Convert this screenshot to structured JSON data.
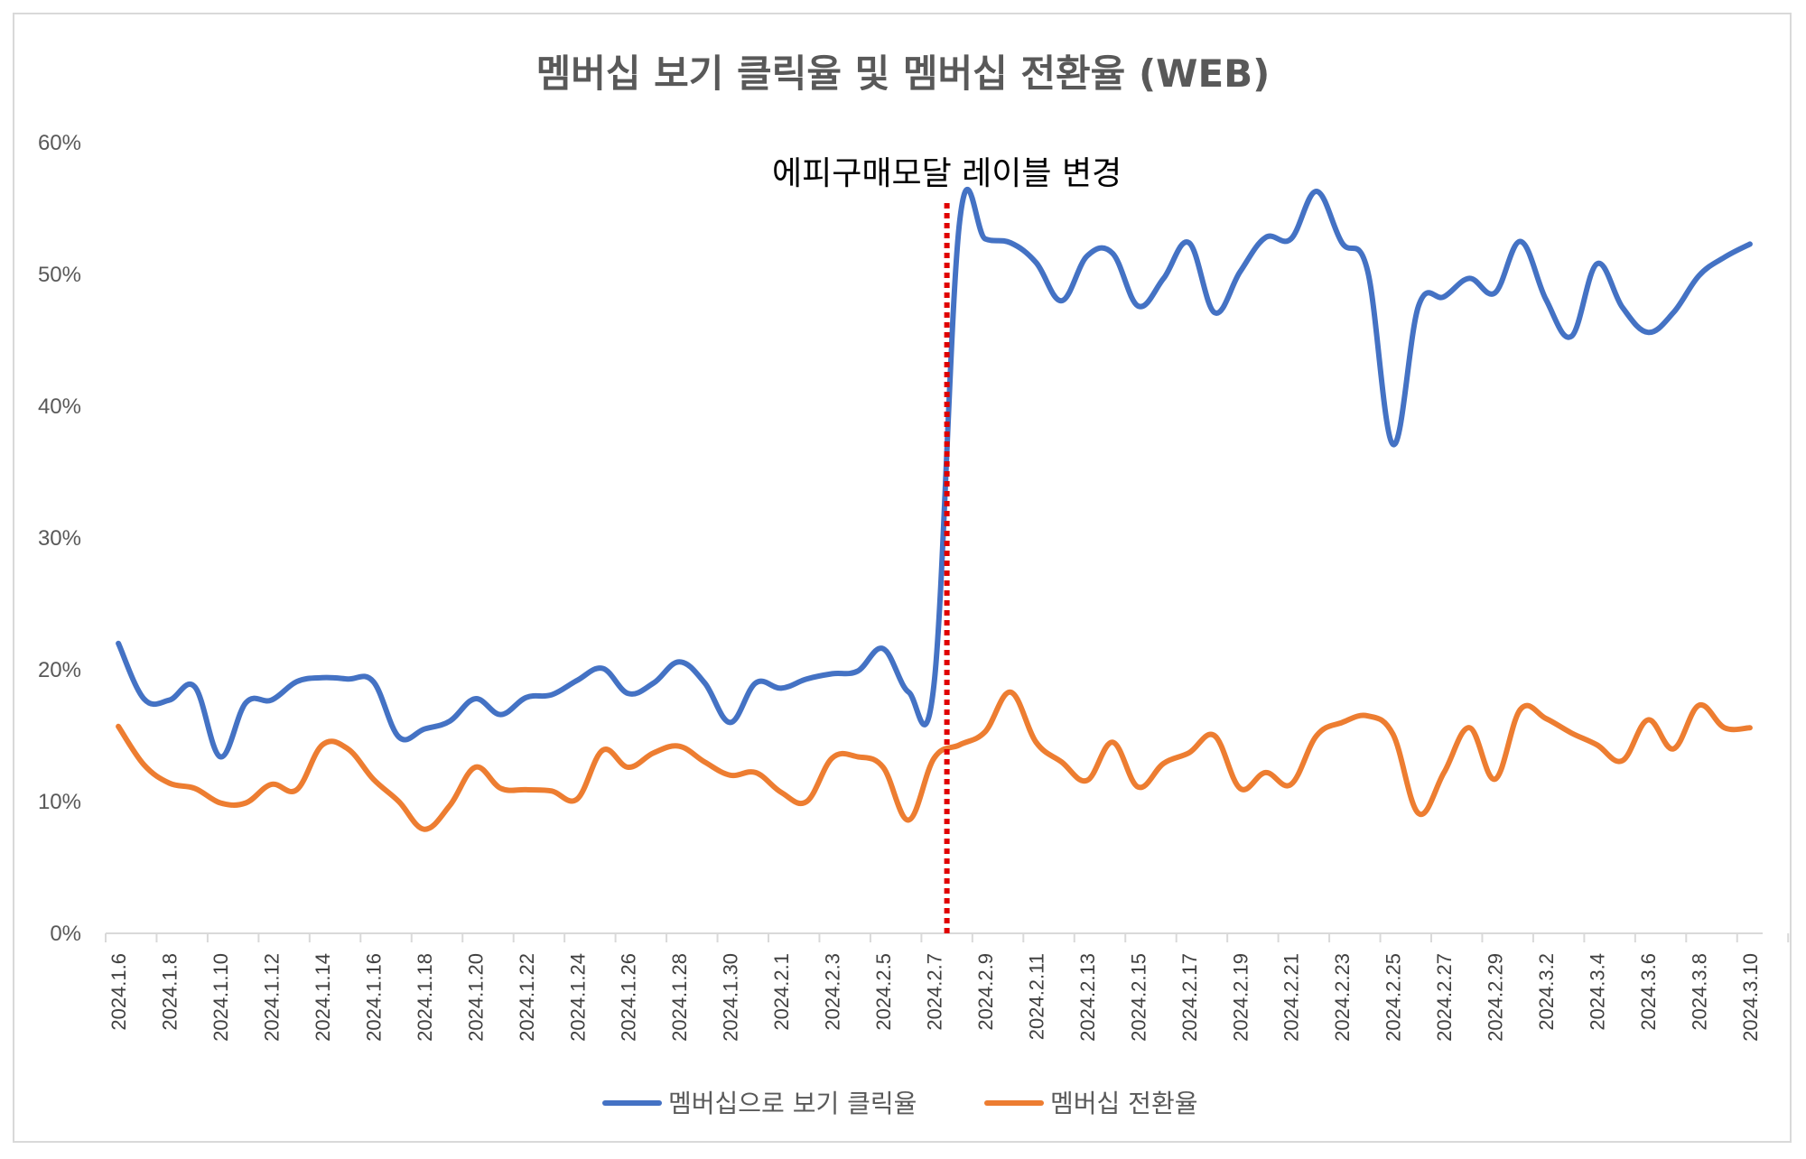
{
  "chart_data": {
    "type": "line",
    "title": "멤버십 보기 클릭율 및 멤버십 전환율 (WEB)",
    "xlabel": "",
    "ylabel": "",
    "ylim": [
      0,
      0.6
    ],
    "y_ticks": [
      "0%",
      "10%",
      "20%",
      "30%",
      "40%",
      "50%",
      "60%"
    ],
    "grid": false,
    "legend_position": "bottom",
    "x_tick_labels": [
      "2024.1.6",
      "2024.1.8",
      "2024.1.10",
      "2024.1.12",
      "2024.1.14",
      "2024.1.16",
      "2024.1.18",
      "2024.1.20",
      "2024.1.22",
      "2024.1.24",
      "2024.1.26",
      "2024.1.28",
      "2024.1.30",
      "2024.2.1",
      "2024.2.3",
      "2024.2.5",
      "2024.2.7",
      "2024.2.9",
      "2024.2.11",
      "2024.2.13",
      "2024.2.15",
      "2024.2.17",
      "2024.2.19",
      "2024.2.21",
      "2024.2.23",
      "2024.2.25",
      "2024.2.27",
      "2024.2.29",
      "2024.3.2",
      "2024.3.4",
      "2024.3.6",
      "2024.3.8",
      "2024.3.10"
    ],
    "x": [
      "2024.1.6",
      "2024.1.7",
      "2024.1.8",
      "2024.1.9",
      "2024.1.10",
      "2024.1.11",
      "2024.1.12",
      "2024.1.13",
      "2024.1.14",
      "2024.1.15",
      "2024.1.16",
      "2024.1.17",
      "2024.1.18",
      "2024.1.19",
      "2024.1.20",
      "2024.1.21",
      "2024.1.22",
      "2024.1.23",
      "2024.1.24",
      "2024.1.25",
      "2024.1.26",
      "2024.1.27",
      "2024.1.28",
      "2024.1.29",
      "2024.1.30",
      "2024.1.31",
      "2024.2.1",
      "2024.2.2",
      "2024.2.3",
      "2024.2.4",
      "2024.2.5",
      "2024.2.6",
      "2024.2.7",
      "2024.2.8",
      "2024.2.9",
      "2024.2.10",
      "2024.2.11",
      "2024.2.12",
      "2024.2.13",
      "2024.2.14",
      "2024.2.15",
      "2024.2.16",
      "2024.2.17",
      "2024.2.18",
      "2024.2.19",
      "2024.2.20",
      "2024.2.21",
      "2024.2.22",
      "2024.2.23",
      "2024.2.24",
      "2024.2.25",
      "2024.2.26",
      "2024.2.27",
      "2024.2.28",
      "2024.2.29",
      "2024.3.1",
      "2024.3.2",
      "2024.3.3",
      "2024.3.4",
      "2024.3.5",
      "2024.3.6",
      "2024.3.7",
      "2024.3.8",
      "2024.3.9",
      "2024.3.10"
    ],
    "series": [
      {
        "name": "멤버십으로 보기 클릭율",
        "color": "#4472C4",
        "values": [
          0.22,
          0.178,
          0.177,
          0.187,
          0.134,
          0.175,
          0.177,
          0.191,
          0.194,
          0.193,
          0.191,
          0.149,
          0.155,
          0.161,
          0.178,
          0.166,
          0.179,
          0.181,
          0.192,
          0.201,
          0.182,
          0.19,
          0.206,
          0.19,
          0.16,
          0.19,
          0.186,
          0.193,
          0.197,
          0.199,
          0.216,
          0.183,
          0.19,
          0.54,
          0.527,
          0.524,
          0.509,
          0.48,
          0.514,
          0.516,
          0.476,
          0.497,
          0.524,
          0.471,
          0.502,
          0.528,
          0.527,
          0.563,
          0.524,
          0.503,
          0.371,
          0.476,
          0.483,
          0.497,
          0.486,
          0.525,
          0.481,
          0.453,
          0.508,
          0.475,
          0.456,
          0.471,
          0.499,
          0.513,
          0.523
        ]
      },
      {
        "name": "멤버십 전환율",
        "color": "#ED7D31",
        "values": [
          0.157,
          0.128,
          0.114,
          0.11,
          0.099,
          0.099,
          0.113,
          0.109,
          0.143,
          0.14,
          0.117,
          0.1,
          0.079,
          0.097,
          0.126,
          0.11,
          0.109,
          0.108,
          0.102,
          0.139,
          0.126,
          0.137,
          0.142,
          0.13,
          0.12,
          0.122,
          0.107,
          0.1,
          0.133,
          0.134,
          0.126,
          0.086,
          0.133,
          0.143,
          0.153,
          0.183,
          0.145,
          0.13,
          0.116,
          0.145,
          0.111,
          0.129,
          0.137,
          0.15,
          0.11,
          0.122,
          0.113,
          0.15,
          0.16,
          0.165,
          0.151,
          0.091,
          0.122,
          0.156,
          0.117,
          0.17,
          0.163,
          0.152,
          0.143,
          0.131,
          0.162,
          0.14,
          0.173,
          0.156,
          0.156
        ]
      }
    ],
    "annotation": {
      "text": "에피구매모달 레이블 변경",
      "x_position": "between 2024.2.7 and 2024.2.8",
      "line_style": "dotted",
      "line_color": "#E00000"
    }
  }
}
